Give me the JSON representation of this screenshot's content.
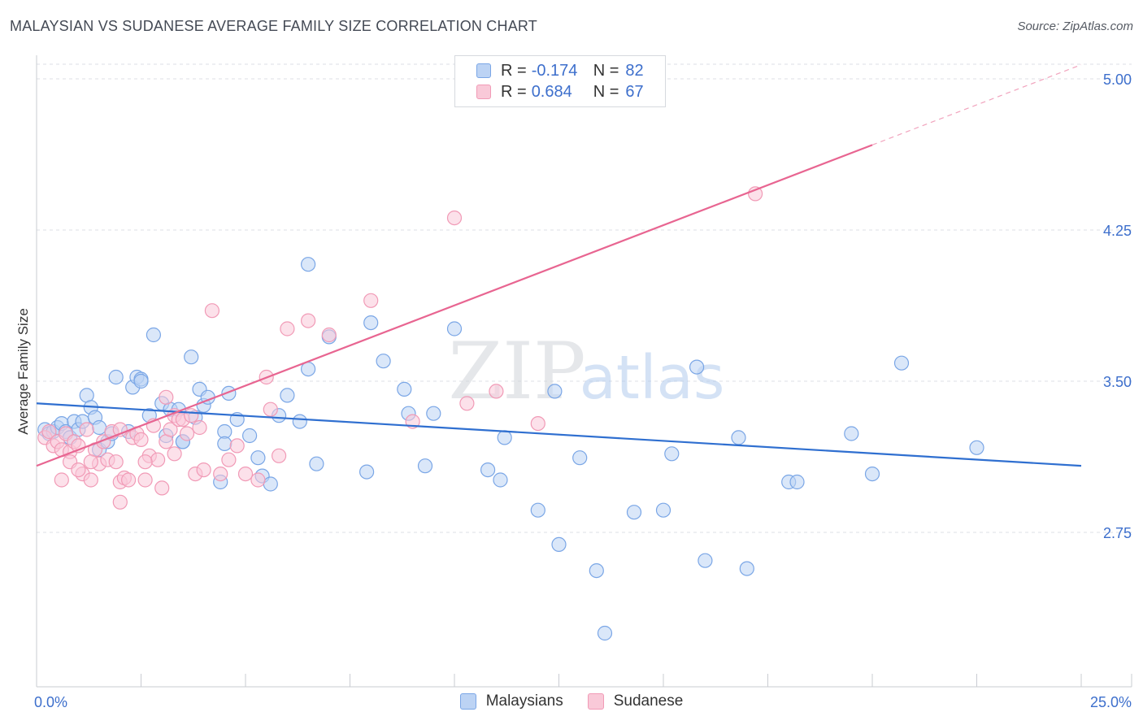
{
  "title": "MALAYSIAN VS SUDANESE AVERAGE FAMILY SIZE CORRELATION CHART",
  "source": "Source: ZipAtlas.com",
  "watermark": {
    "zip": "ZIP",
    "atlas": "atlas"
  },
  "legend_top": [
    {
      "r_label": "R =",
      "r_value": "-0.174",
      "n_label": "N =",
      "n_value": "82"
    },
    {
      "r_label": "R =",
      "r_value": "0.684",
      "n_label": "N =",
      "n_value": "67"
    }
  ],
  "legend_bottom": [
    "Malaysians",
    "Sudanese"
  ],
  "chart_data": {
    "type": "scatter",
    "title": "MALAYSIAN VS SUDANESE AVERAGE FAMILY SIZE CORRELATION CHART",
    "xlabel": "",
    "ylabel": "Average Family Size",
    "xlim": [
      0,
      25
    ],
    "ylim": [
      2.0,
      5.1
    ],
    "x_tick_labels": [
      "0.0%",
      "25.0%"
    ],
    "y_ticks": [
      2.75,
      3.5,
      4.25,
      5.0
    ],
    "y_tick_labels": [
      "2.75",
      "3.50",
      "4.25",
      "5.00"
    ],
    "grid": true,
    "colors": {
      "malaysians": "#7aa6e6",
      "sudanese": "#f19ab6",
      "malaysians_line": "#2f6fd0",
      "sudanese_line": "#e86591",
      "tick_label": "#3d6fcc"
    },
    "series": [
      {
        "name": "Malaysians",
        "color": "#7aa6e6",
        "points": [
          [
            0.2,
            3.26
          ],
          [
            0.3,
            3.24
          ],
          [
            0.4,
            3.25
          ],
          [
            0.5,
            3.27
          ],
          [
            0.6,
            3.29
          ],
          [
            0.7,
            3.25
          ],
          [
            0.8,
            3.22
          ],
          [
            0.9,
            3.3
          ],
          [
            1.0,
            3.26
          ],
          [
            1.1,
            3.3
          ],
          [
            1.2,
            3.43
          ],
          [
            1.3,
            3.37
          ],
          [
            1.4,
            3.32
          ],
          [
            1.5,
            3.27
          ],
          [
            1.5,
            3.16
          ],
          [
            1.7,
            3.2
          ],
          [
            1.8,
            3.24
          ],
          [
            1.9,
            3.52
          ],
          [
            2.2,
            3.25
          ],
          [
            2.3,
            3.47
          ],
          [
            2.4,
            3.52
          ],
          [
            2.5,
            3.51
          ],
          [
            2.5,
            3.5
          ],
          [
            2.7,
            3.33
          ],
          [
            2.8,
            3.73
          ],
          [
            3.0,
            3.39
          ],
          [
            3.1,
            3.23
          ],
          [
            3.2,
            3.36
          ],
          [
            3.4,
            3.36
          ],
          [
            3.5,
            3.2
          ],
          [
            3.5,
            3.2
          ],
          [
            3.7,
            3.62
          ],
          [
            3.8,
            3.32
          ],
          [
            3.9,
            3.46
          ],
          [
            4.0,
            3.38
          ],
          [
            4.1,
            3.42
          ],
          [
            4.5,
            3.25
          ],
          [
            4.5,
            3.19
          ],
          [
            4.4,
            3.0
          ],
          [
            4.6,
            3.44
          ],
          [
            4.8,
            3.31
          ],
          [
            5.1,
            3.23
          ],
          [
            5.3,
            3.12
          ],
          [
            5.4,
            3.03
          ],
          [
            5.6,
            2.99
          ],
          [
            5.8,
            3.33
          ],
          [
            6.0,
            3.43
          ],
          [
            6.3,
            3.3
          ],
          [
            6.5,
            3.56
          ],
          [
            6.7,
            3.09
          ],
          [
            7.0,
            3.72
          ],
          [
            6.5,
            4.08
          ],
          [
            8.0,
            3.79
          ],
          [
            7.9,
            3.05
          ],
          [
            8.3,
            3.6
          ],
          [
            8.8,
            3.46
          ],
          [
            8.9,
            3.34
          ],
          [
            9.3,
            3.08
          ],
          [
            9.5,
            3.34
          ],
          [
            10.0,
            3.76
          ],
          [
            10.8,
            3.06
          ],
          [
            11.2,
            3.22
          ],
          [
            11.1,
            3.01
          ],
          [
            12.0,
            2.86
          ],
          [
            12.4,
            3.45
          ],
          [
            12.5,
            2.69
          ],
          [
            13.0,
            3.12
          ],
          [
            13.4,
            2.56
          ],
          [
            13.6,
            2.25
          ],
          [
            14.3,
            2.85
          ],
          [
            15.0,
            2.86
          ],
          [
            15.2,
            3.14
          ],
          [
            15.8,
            3.57
          ],
          [
            16.0,
            2.61
          ],
          [
            16.8,
            3.22
          ],
          [
            17.0,
            2.57
          ],
          [
            18.0,
            3.0
          ],
          [
            18.2,
            3.0
          ],
          [
            19.5,
            3.24
          ],
          [
            20.0,
            3.04
          ],
          [
            20.7,
            3.59
          ],
          [
            22.5,
            3.17
          ]
        ]
      },
      {
        "name": "Sudanese",
        "color": "#f19ab6",
        "points": [
          [
            0.2,
            3.22
          ],
          [
            0.3,
            3.25
          ],
          [
            0.4,
            3.18
          ],
          [
            0.5,
            3.2
          ],
          [
            0.6,
            3.16
          ],
          [
            0.7,
            3.24
          ],
          [
            0.8,
            3.15
          ],
          [
            0.8,
            3.1
          ],
          [
            0.9,
            3.2
          ],
          [
            1.0,
            3.18
          ],
          [
            1.1,
            3.04
          ],
          [
            1.2,
            3.26
          ],
          [
            1.3,
            3.01
          ],
          [
            1.4,
            3.16
          ],
          [
            1.5,
            3.09
          ],
          [
            1.6,
            3.2
          ],
          [
            1.7,
            3.11
          ],
          [
            1.8,
            3.25
          ],
          [
            1.9,
            3.1
          ],
          [
            2.0,
            3.0
          ],
          [
            2.1,
            3.02
          ],
          [
            2.2,
            3.01
          ],
          [
            2.3,
            3.22
          ],
          [
            2.4,
            3.24
          ],
          [
            2.5,
            3.21
          ],
          [
            2.6,
            3.01
          ],
          [
            2.7,
            3.13
          ],
          [
            2.8,
            3.28
          ],
          [
            2.9,
            3.11
          ],
          [
            3.0,
            2.97
          ],
          [
            3.1,
            3.2
          ],
          [
            3.2,
            3.26
          ],
          [
            3.3,
            3.33
          ],
          [
            3.4,
            3.31
          ],
          [
            3.5,
            3.31
          ],
          [
            3.6,
            3.24
          ],
          [
            3.7,
            3.33
          ],
          [
            3.8,
            3.04
          ],
          [
            3.9,
            3.27
          ],
          [
            4.0,
            3.06
          ],
          [
            4.2,
            3.85
          ],
          [
            4.4,
            3.04
          ],
          [
            4.6,
            3.11
          ],
          [
            4.8,
            3.18
          ],
          [
            5.0,
            3.04
          ],
          [
            5.3,
            3.01
          ],
          [
            5.5,
            3.52
          ],
          [
            5.6,
            3.36
          ],
          [
            5.8,
            3.13
          ],
          [
            6.0,
            3.76
          ],
          [
            6.5,
            3.8
          ],
          [
            7.0,
            3.73
          ],
          [
            8.0,
            3.9
          ],
          [
            9.0,
            3.3
          ],
          [
            10.0,
            4.31
          ],
          [
            17.2,
            4.43
          ],
          [
            10.3,
            3.39
          ],
          [
            11.0,
            3.45
          ],
          [
            12.0,
            3.29
          ],
          [
            3.1,
            3.42
          ],
          [
            2.0,
            3.26
          ],
          [
            1.3,
            3.1
          ],
          [
            2.6,
            3.1
          ],
          [
            3.3,
            3.14
          ],
          [
            1.0,
            3.06
          ],
          [
            0.6,
            3.01
          ],
          [
            2.0,
            2.9
          ]
        ]
      }
    ],
    "trend_lines": [
      {
        "series": "Malaysians",
        "x": [
          0,
          25
        ],
        "y": [
          3.39,
          3.08
        ]
      },
      {
        "series": "Sudanese",
        "x": [
          0,
          25
        ],
        "y": [
          3.08,
          5.07
        ],
        "solid_until_x": 20
      }
    ]
  }
}
